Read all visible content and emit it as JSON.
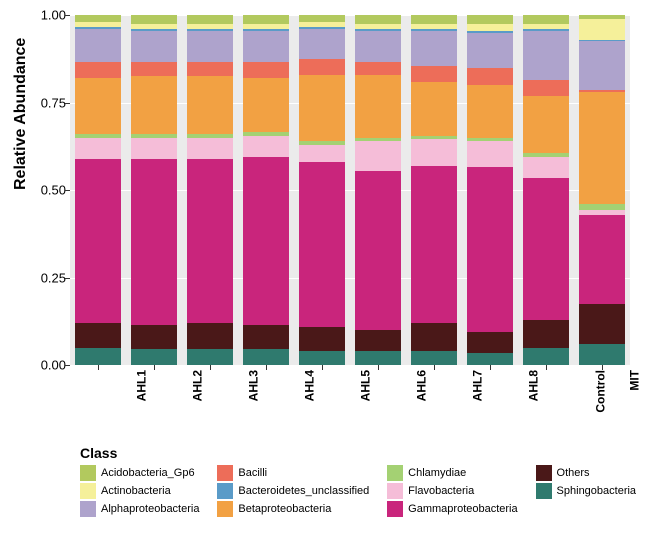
{
  "chart": {
    "type": "stacked-bar",
    "ylabel": "Relative Abundance",
    "ylabel_fontsize": 16,
    "ylim": [
      0,
      1
    ],
    "yticks": [
      0.0,
      0.25,
      0.5,
      0.75,
      1.0
    ],
    "ytick_labels": [
      "0.00",
      "0.25",
      "0.50",
      "0.75",
      "1.00"
    ],
    "background_color": "#ebebeb",
    "grid_color": "#ffffff",
    "categories": [
      "AHL1",
      "AHL2",
      "AHL3",
      "AHL4",
      "AHL5",
      "AHL6",
      "AHL7",
      "AHL8",
      "Control",
      "MIT"
    ],
    "series_order": [
      "Sphingobacteria",
      "Others",
      "Gammaproteobacteria",
      "Flavobacteria",
      "Chlamydiae",
      "Betaproteobacteria",
      "Bacilli",
      "Alphaproteobacteria",
      "Bacteroidetes_unclassified",
      "Actinobacteria",
      "Acidobacteria_Gp6"
    ],
    "colors": {
      "Acidobacteria_Gp6": "#b2c95e",
      "Actinobacteria": "#f5f09a",
      "Alphaproteobacteria": "#aea3cc",
      "Bacilli": "#ed6d59",
      "Bacteroidetes_unclassified": "#5a9bc8",
      "Betaproteobacteria": "#f2a143",
      "Chlamydiae": "#a4d173",
      "Flavobacteria": "#f5bdd8",
      "Gammaproteobacteria": "#c9257c",
      "Others": "#4a1818",
      "Sphingobacteria": "#2f7a6e"
    },
    "data": {
      "AHL1": {
        "Sphingobacteria": 0.05,
        "Others": 0.07,
        "Gammaproteobacteria": 0.47,
        "Flavobacteria": 0.06,
        "Chlamydiae": 0.01,
        "Betaproteobacteria": 0.16,
        "Bacilli": 0.045,
        "Alphaproteobacteria": 0.095,
        "Bacteroidetes_unclassified": 0.005,
        "Actinobacteria": 0.015,
        "Acidobacteria_Gp6": 0.02
      },
      "AHL2": {
        "Sphingobacteria": 0.045,
        "Others": 0.07,
        "Gammaproteobacteria": 0.475,
        "Flavobacteria": 0.06,
        "Chlamydiae": 0.01,
        "Betaproteobacteria": 0.165,
        "Bacilli": 0.04,
        "Alphaproteobacteria": 0.09,
        "Bacteroidetes_unclassified": 0.005,
        "Actinobacteria": 0.015,
        "Acidobacteria_Gp6": 0.025
      },
      "AHL3": {
        "Sphingobacteria": 0.045,
        "Others": 0.075,
        "Gammaproteobacteria": 0.47,
        "Flavobacteria": 0.06,
        "Chlamydiae": 0.01,
        "Betaproteobacteria": 0.165,
        "Bacilli": 0.04,
        "Alphaproteobacteria": 0.09,
        "Bacteroidetes_unclassified": 0.005,
        "Actinobacteria": 0.015,
        "Acidobacteria_Gp6": 0.025
      },
      "AHL4": {
        "Sphingobacteria": 0.045,
        "Others": 0.07,
        "Gammaproteobacteria": 0.48,
        "Flavobacteria": 0.06,
        "Chlamydiae": 0.01,
        "Betaproteobacteria": 0.155,
        "Bacilli": 0.045,
        "Alphaproteobacteria": 0.09,
        "Bacteroidetes_unclassified": 0.005,
        "Actinobacteria": 0.015,
        "Acidobacteria_Gp6": 0.025
      },
      "AHL5": {
        "Sphingobacteria": 0.04,
        "Others": 0.07,
        "Gammaproteobacteria": 0.47,
        "Flavobacteria": 0.05,
        "Chlamydiae": 0.01,
        "Betaproteobacteria": 0.19,
        "Bacilli": 0.045,
        "Alphaproteobacteria": 0.085,
        "Bacteroidetes_unclassified": 0.005,
        "Actinobacteria": 0.015,
        "Acidobacteria_Gp6": 0.02
      },
      "AHL6": {
        "Sphingobacteria": 0.04,
        "Others": 0.06,
        "Gammaproteobacteria": 0.455,
        "Flavobacteria": 0.085,
        "Chlamydiae": 0.01,
        "Betaproteobacteria": 0.18,
        "Bacilli": 0.035,
        "Alphaproteobacteria": 0.09,
        "Bacteroidetes_unclassified": 0.005,
        "Actinobacteria": 0.015,
        "Acidobacteria_Gp6": 0.025
      },
      "AHL7": {
        "Sphingobacteria": 0.04,
        "Others": 0.08,
        "Gammaproteobacteria": 0.45,
        "Flavobacteria": 0.075,
        "Chlamydiae": 0.01,
        "Betaproteobacteria": 0.155,
        "Bacilli": 0.045,
        "Alphaproteobacteria": 0.1,
        "Bacteroidetes_unclassified": 0.005,
        "Actinobacteria": 0.015,
        "Acidobacteria_Gp6": 0.025
      },
      "AHL8": {
        "Sphingobacteria": 0.035,
        "Others": 0.06,
        "Gammaproteobacteria": 0.47,
        "Flavobacteria": 0.075,
        "Chlamydiae": 0.01,
        "Betaproteobacteria": 0.15,
        "Bacilli": 0.05,
        "Alphaproteobacteria": 0.1,
        "Bacteroidetes_unclassified": 0.005,
        "Actinobacteria": 0.02,
        "Acidobacteria_Gp6": 0.025
      },
      "Control": {
        "Sphingobacteria": 0.05,
        "Others": 0.08,
        "Gammaproteobacteria": 0.405,
        "Flavobacteria": 0.06,
        "Chlamydiae": 0.01,
        "Betaproteobacteria": 0.165,
        "Bacilli": 0.045,
        "Alphaproteobacteria": 0.14,
        "Bacteroidetes_unclassified": 0.005,
        "Actinobacteria": 0.015,
        "Acidobacteria_Gp6": 0.025
      },
      "MIT": {
        "Sphingobacteria": 0.06,
        "Others": 0.115,
        "Gammaproteobacteria": 0.255,
        "Flavobacteria": 0.012,
        "Chlamydiae": 0.018,
        "Betaproteobacteria": 0.32,
        "Bacilli": 0.005,
        "Alphaproteobacteria": 0.14,
        "Bacteroidetes_unclassified": 0.005,
        "Actinobacteria": 0.06,
        "Acidobacteria_Gp6": 0.01
      }
    },
    "legend": {
      "title": "Class",
      "columns": 4,
      "items": [
        "Acidobacteria_Gp6",
        "Bacilli",
        "Chlamydiae",
        "Others",
        "Actinobacteria",
        "Bacteroidetes_unclassified",
        "Flavobacteria",
        "Sphingobacteria",
        "Alphaproteobacteria",
        "Betaproteobacteria",
        "Gammaproteobacteria"
      ]
    }
  }
}
